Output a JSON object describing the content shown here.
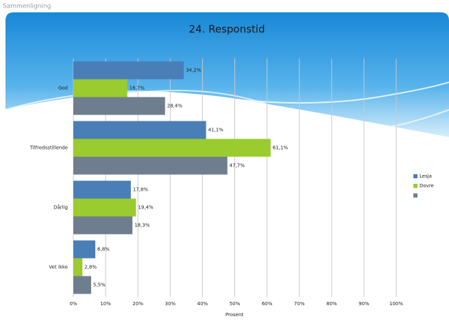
{
  "header": "Sammenligning",
  "chart_data": {
    "type": "hbar",
    "title": "24. Responstid",
    "categories": [
      "God",
      "Tilfredsstillende",
      "Dårlig",
      "Vet ikke"
    ],
    "series": [
      {
        "name": "Lesja",
        "color": "#4a7eb6",
        "values": [
          34.2,
          41.1,
          17.8,
          6.8
        ],
        "value_labels": [
          "34,2%",
          "41,1%",
          "17,8%",
          "6,8%"
        ]
      },
      {
        "color": "#9acb2f",
        "values": [
          16.7,
          61.1,
          19.4,
          2.8
        ],
        "value_labels": [
          "16,7%",
          "61,1%",
          "19,4%",
          "2,8%"
        ],
        "name": "Dovre"
      },
      {
        "color": "#6f7e8f",
        "values": [
          28.4,
          47.7,
          18.3,
          5.5
        ],
        "value_labels": [
          "28,4%",
          "47,7%",
          "18,3%",
          "5,5%"
        ]
      }
    ],
    "xlim": [
      0,
      100
    ],
    "xticks": [
      {
        "value": 0,
        "label": "0%"
      },
      {
        "value": 10,
        "label": "10%"
      },
      {
        "value": 20,
        "label": "20%"
      },
      {
        "value": 30,
        "label": "30%"
      },
      {
        "value": 40,
        "label": "40%"
      },
      {
        "value": 50,
        "label": "50%"
      },
      {
        "value": 60,
        "label": "60%"
      },
      {
        "value": 70,
        "label": "70%"
      },
      {
        "value": 80,
        "label": "80%"
      },
      {
        "value": 90,
        "label": "90%"
      },
      {
        "value": 100,
        "label": "100%"
      }
    ],
    "xlabel": "Prosent",
    "grid": true,
    "legend": "right"
  }
}
